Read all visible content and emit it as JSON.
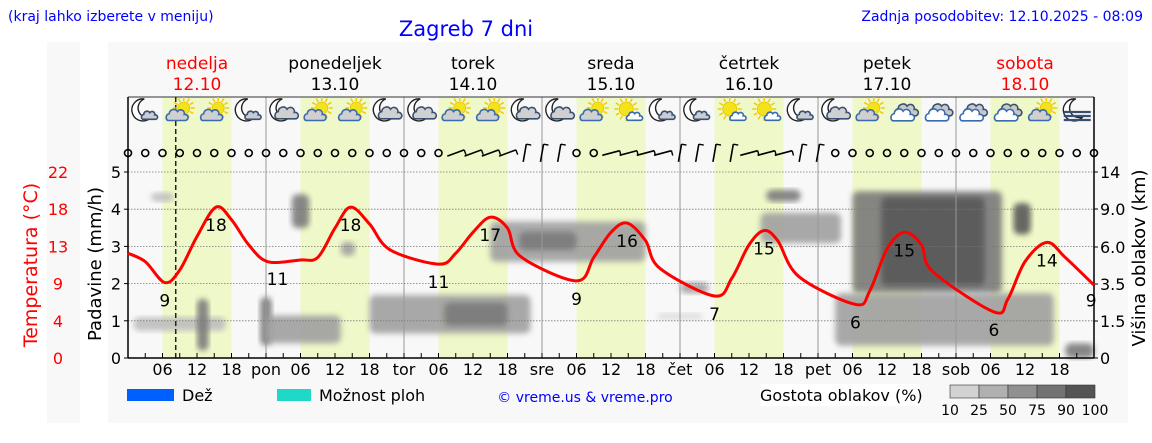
{
  "header": {
    "hint": "(kraj lahko izberete v meniju)",
    "title": "Zagreb 7 dni",
    "updated": "Zadnja posodobitev: 12.10.2025 - 08:09"
  },
  "days": [
    {
      "name": "nedelja",
      "date": "12.10",
      "weekend": true
    },
    {
      "name": "ponedeljek",
      "date": "13.10",
      "weekend": false
    },
    {
      "name": "torek",
      "date": "14.10",
      "weekend": false
    },
    {
      "name": "sreda",
      "date": "15.10",
      "weekend": false
    },
    {
      "name": "četrtek",
      "date": "16.10",
      "weekend": false
    },
    {
      "name": "petek",
      "date": "17.10",
      "weekend": false
    },
    {
      "name": "sobota",
      "date": "18.10",
      "weekend": true
    }
  ],
  "colors": {
    "title": "#0000ff",
    "weekend": "#ff0000",
    "temperature": "#ff0000",
    "daytime_band": "#eff8c8",
    "plot_bg": "#f8f8f8",
    "rain": "#0060ff",
    "showers": "#20d8c8"
  },
  "weather_icons": [
    "moon-small-cloud",
    "sun-cloud",
    "sun-cloud",
    "moon-small-cloud",
    "moon-cloud",
    "sun-cloud",
    "sun-cloud",
    "moon-cloud",
    "moon-cloud",
    "sun-cloud",
    "sun-cloud",
    "moon-cloud",
    "moon-cloud",
    "sun-cloud",
    "sun-small-cloud",
    "moon-small-cloud",
    "moon-small-cloud",
    "sun-small-cloud",
    "sun-small-cloud",
    "moon-small-cloud",
    "moon-cloud",
    "sun-cloud",
    "clouds",
    "clouds",
    "clouds",
    "clouds",
    "sun-cloud",
    "moon-fog"
  ],
  "wind": {
    "calm_symbol": "circle",
    "barbs": [
      {
        "from_index": 19,
        "to_index": 22,
        "direction_deg": 70
      },
      {
        "from_index": 23,
        "to_index": 25,
        "direction_deg": 10
      },
      {
        "from_index": 28,
        "to_index": 31,
        "direction_deg": 75
      },
      {
        "from_index": 32,
        "to_index": 35,
        "direction_deg": 10
      },
      {
        "from_index": 36,
        "to_index": 38,
        "direction_deg": 75
      },
      {
        "from_index": 39,
        "to_index": 40,
        "direction_deg": 10
      }
    ]
  },
  "now_hour": 8.3,
  "chart_data": {
    "type": "line",
    "x_unit": "hours from 12.10 00:00",
    "x_ticks": {
      "hour_labels": [
        "06",
        "12",
        "18"
      ],
      "day_labels": [
        "",
        "pon",
        "tor",
        "sre",
        "čet",
        "pet",
        "sob"
      ]
    },
    "temperature": {
      "axis_label": "Temperatura (°C)",
      "ticks": [
        "0",
        "4",
        "9",
        "13",
        "18",
        "22"
      ],
      "points": [
        [
          0,
          12.5
        ],
        [
          3,
          11.5
        ],
        [
          6.4,
          9
        ],
        [
          9,
          10.5
        ],
        [
          12,
          14.5
        ],
        [
          15.3,
          18
        ],
        [
          18,
          16.5
        ],
        [
          21,
          13.5
        ],
        [
          24.3,
          11.5
        ],
        [
          30,
          11.7
        ],
        [
          33,
          12
        ],
        [
          36,
          15.5
        ],
        [
          38.7,
          18
        ],
        [
          42,
          16
        ],
        [
          45.6,
          12.9
        ],
        [
          54,
          11.2
        ],
        [
          57,
          12.5
        ],
        [
          60,
          15
        ],
        [
          63,
          16.8
        ],
        [
          66,
          15.5
        ],
        [
          68.3,
          12.1
        ],
        [
          78,
          9.2
        ],
        [
          81,
          12
        ],
        [
          84,
          15
        ],
        [
          86.8,
          16.1
        ],
        [
          90,
          14
        ],
        [
          92.5,
          10.7
        ],
        [
          102,
          7.4
        ],
        [
          105,
          9.5
        ],
        [
          108,
          13.5
        ],
        [
          110.6,
          15.2
        ],
        [
          113,
          14
        ],
        [
          116.7,
          9.7
        ],
        [
          126.5,
          6.4
        ],
        [
          129,
          8
        ],
        [
          132,
          13
        ],
        [
          135,
          15
        ],
        [
          138,
          13.5
        ],
        [
          140,
          10.3
        ],
        [
          150.6,
          5.5
        ],
        [
          153,
          7
        ],
        [
          156,
          11.5
        ],
        [
          159.8,
          13.8
        ],
        [
          163,
          12
        ],
        [
          168,
          8.7
        ]
      ],
      "extreme_labels": [
        {
          "hour": 6.4,
          "value": "9"
        },
        {
          "hour": 15.3,
          "value": "18"
        },
        {
          "hour": 26,
          "value": "11"
        },
        {
          "hour": 38.7,
          "value": "18"
        },
        {
          "hour": 54,
          "value": "11"
        },
        {
          "hour": 63,
          "value": "17"
        },
        {
          "hour": 78,
          "value": "9"
        },
        {
          "hour": 86.8,
          "value": "16"
        },
        {
          "hour": 102,
          "value": "7"
        },
        {
          "hour": 110.6,
          "value": "15"
        },
        {
          "hour": 126.5,
          "value": "6"
        },
        {
          "hour": 135,
          "value": "15"
        },
        {
          "hour": 150.6,
          "value": "6"
        },
        {
          "hour": 159.8,
          "value": "14"
        },
        {
          "hour": 167.5,
          "value": "9"
        }
      ]
    },
    "precipitation": {
      "axis_label": "Padavine (mm/h)",
      "ticks": [
        "0",
        "1",
        "2",
        "3",
        "4",
        "5"
      ],
      "ylim": [
        0,
        5
      ],
      "values": []
    },
    "cloud_height": {
      "axis_label": "Višina oblakov (km)",
      "ticks": [
        "0",
        "1.5",
        "3.5",
        "6.0",
        "9.0",
        "14"
      ],
      "tick_values": [
        0,
        1.5,
        3.5,
        6,
        9,
        14
      ],
      "cloud_regions": [
        {
          "h": [
            1,
            17
          ],
          "km": [
            1.1,
            1.7
          ],
          "density": 25
        },
        {
          "h": [
            12,
            14
          ],
          "km": [
            0.3,
            2.7
          ],
          "density": 75
        },
        {
          "h": [
            4,
            8
          ],
          "km": [
            10,
            11.2
          ],
          "density": 25
        },
        {
          "h": [
            23,
            25
          ],
          "km": [
            0.5,
            2.8
          ],
          "density": 75
        },
        {
          "h": [
            24,
            37
          ],
          "km": [
            0.6,
            1.8
          ],
          "density": 50
        },
        {
          "h": [
            28.5,
            31.5
          ],
          "km": [
            7.5,
            11
          ],
          "density": 75
        },
        {
          "h": [
            37,
            39.5
          ],
          "km": [
            5.4,
            6.4
          ],
          "density": 50
        },
        {
          "h": [
            42,
            70
          ],
          "km": [
            1.0,
            2.9
          ],
          "density": 50
        },
        {
          "h": [
            55,
            66
          ],
          "km": [
            1.3,
            2.5
          ],
          "density": 75
        },
        {
          "h": [
            63,
            90
          ],
          "km": [
            5.0,
            8.0
          ],
          "density": 50
        },
        {
          "h": [
            68,
            78
          ],
          "km": [
            5.8,
            7.2
          ],
          "density": 75
        },
        {
          "h": [
            92,
            100
          ],
          "km": [
            1.6,
            1.9
          ],
          "density": 10
        },
        {
          "h": [
            96,
            101
          ],
          "km": [
            3.0,
            3.6
          ],
          "density": 50
        },
        {
          "h": [
            111,
            117
          ],
          "km": [
            10,
            11.6
          ],
          "density": 75
        },
        {
          "h": [
            110,
            124
          ],
          "km": [
            6.3,
            8.7
          ],
          "density": 50
        },
        {
          "h": [
            126,
            152
          ],
          "km": [
            3.0,
            11.4
          ],
          "density": 75
        },
        {
          "h": [
            131,
            149
          ],
          "km": [
            3.4,
            10.6
          ],
          "density": 90
        },
        {
          "h": [
            123,
            161
          ],
          "km": [
            0.5,
            3.0
          ],
          "density": 50
        },
        {
          "h": [
            154,
            157
          ],
          "km": [
            7,
            9.8
          ],
          "density": 90
        },
        {
          "h": [
            163,
            168
          ],
          "km": [
            0,
            0.6
          ],
          "density": 75
        }
      ]
    }
  },
  "legend": {
    "rain": "Dež",
    "showers": "Možnost ploh",
    "credit": "© vreme.us & vreme.pro",
    "cloud_density": "Gostota oblakov (%)",
    "density_ticks": [
      "10",
      "25",
      "50",
      "75",
      "90",
      "100"
    ],
    "density_colors": [
      "#d2d2d2",
      "#b0b0b0",
      "#909090",
      "#727272",
      "#545454"
    ]
  }
}
